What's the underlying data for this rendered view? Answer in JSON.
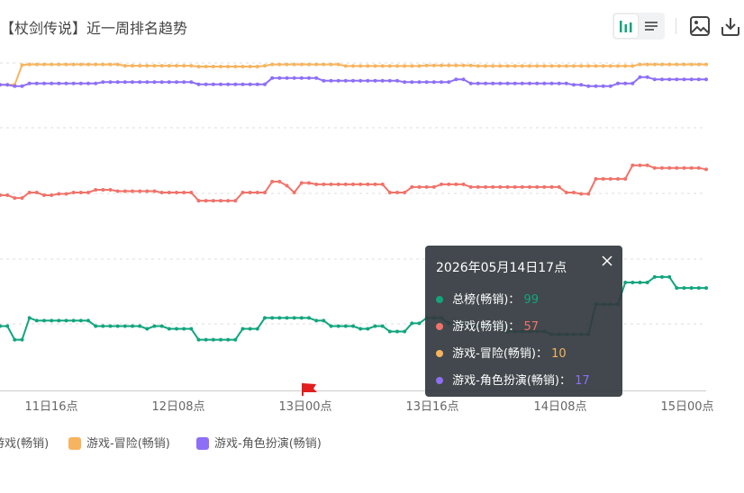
{
  "header": {
    "title": "【杖剑传说】近一周排名趋势"
  },
  "toolbar": {
    "buttons": [
      {
        "name": "bar-chart-view-button",
        "icon": "bar-chart-icon",
        "active": true
      },
      {
        "name": "list-view-button",
        "icon": "list-icon",
        "active": false
      },
      {
        "name": "save-image-button",
        "icon": "image-icon"
      },
      {
        "name": "download-button",
        "icon": "download-icon"
      }
    ]
  },
  "colors": {
    "series0": "#12a57e",
    "series1": "#f0736a",
    "series2": "#f7b45e",
    "series3": "#8d6ff6",
    "grid": "#dddddd",
    "axis": "#cccccc",
    "marker": "#e11d1d",
    "accent": "#12a57e"
  },
  "chart_data": {
    "type": "line",
    "y_axis": "rank",
    "grid": "horizontal dashed",
    "legend_position": "bottom-left",
    "x_tick_labels": [
      "11日16点",
      "12日08点",
      "13日00点",
      "13日16点",
      "14日08点",
      "15日00点"
    ],
    "x": [
      "11日16点",
      "12日08点",
      "13日00点",
      "13日16点",
      "14日08点",
      "15日00点"
    ],
    "series": [
      {
        "name": "游戏(畅销)",
        "values": [
          63,
          62,
          61,
          62,
          61,
          60
        ]
      },
      {
        "name": "游戏-冒险(畅销)",
        "values": [
          10,
          10,
          10,
          10,
          10,
          10
        ]
      },
      {
        "name": "游戏-角色扮演(畅销)",
        "values": [
          17,
          17,
          17,
          17,
          18,
          17
        ]
      },
      {
        "name": "总榜(畅销)",
        "values": [
          115,
          117,
          115,
          116,
          116,
          105
        ]
      }
    ],
    "marker": {
      "position_label": "13日00点",
      "icon": "flag-icon"
    }
  },
  "legend": {
    "items": [
      {
        "label": "游戏(畅销)",
        "color": "#f0736a",
        "partial": true
      },
      {
        "label": "游戏-冒险(畅销)",
        "color": "#f7b45e"
      },
      {
        "label": "游戏-角色扮演(畅销)",
        "color": "#8d6ff6"
      }
    ]
  },
  "tooltip": {
    "title": "2026年05月14日17点",
    "rows": [
      {
        "label": "总榜(畅销)：",
        "value": "99",
        "color": "#12a57e"
      },
      {
        "label": "游戏(畅销)：",
        "value": "57",
        "color": "#f0736a"
      },
      {
        "label": "游戏-冒险(畅销)：",
        "value": "10",
        "color": "#f7b45e"
      },
      {
        "label": "游戏-角色扮演(畅销)：",
        "value": "17",
        "color": "#8d6ff6"
      }
    ]
  }
}
